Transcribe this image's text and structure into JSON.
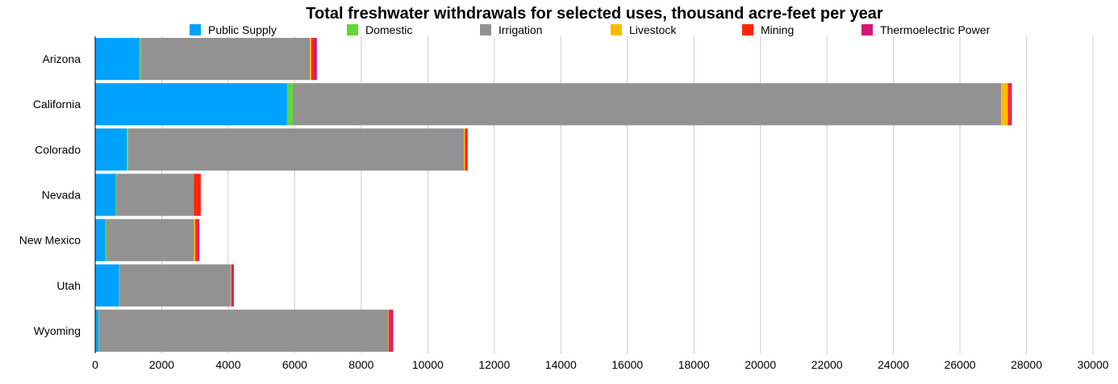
{
  "chart_data": {
    "type": "bar",
    "orientation": "horizontal",
    "stacked": true,
    "title": "Total freshwater withdrawals for selected uses, thousand acre-feet per year",
    "xlabel": "",
    "ylabel": "",
    "xlim": [
      0,
      30000
    ],
    "xticks": [
      0,
      2000,
      4000,
      6000,
      8000,
      10000,
      12000,
      14000,
      16000,
      18000,
      20000,
      22000,
      24000,
      26000,
      28000,
      30000
    ],
    "grid": true,
    "legend_position": "top",
    "categories": [
      "Arizona",
      "California",
      "Colorado",
      "Nevada",
      "New Mexico",
      "Utah",
      "Wyoming"
    ],
    "series": [
      {
        "name": "Public Supply",
        "color": "#00a2ff",
        "values": [
          1330,
          5770,
          950,
          620,
          310,
          720,
          100
        ]
      },
      {
        "name": "Domestic",
        "color": "#61d836",
        "values": [
          35,
          170,
          40,
          20,
          30,
          10,
          10
        ]
      },
      {
        "name": "Irrigation",
        "color": "#929292",
        "values": [
          5090,
          21300,
          10100,
          2320,
          2630,
          3340,
          8700
        ]
      },
      {
        "name": "Livestock",
        "color": "#ffba00",
        "values": [
          40,
          200,
          30,
          5,
          40,
          20,
          10
        ]
      },
      {
        "name": "Mining",
        "color": "#ff2600",
        "values": [
          60,
          70,
          60,
          200,
          80,
          20,
          60
        ]
      },
      {
        "name": "Thermoelectric Power",
        "color": "#d41876",
        "values": [
          110,
          50,
          20,
          10,
          40,
          60,
          80
        ]
      }
    ]
  }
}
